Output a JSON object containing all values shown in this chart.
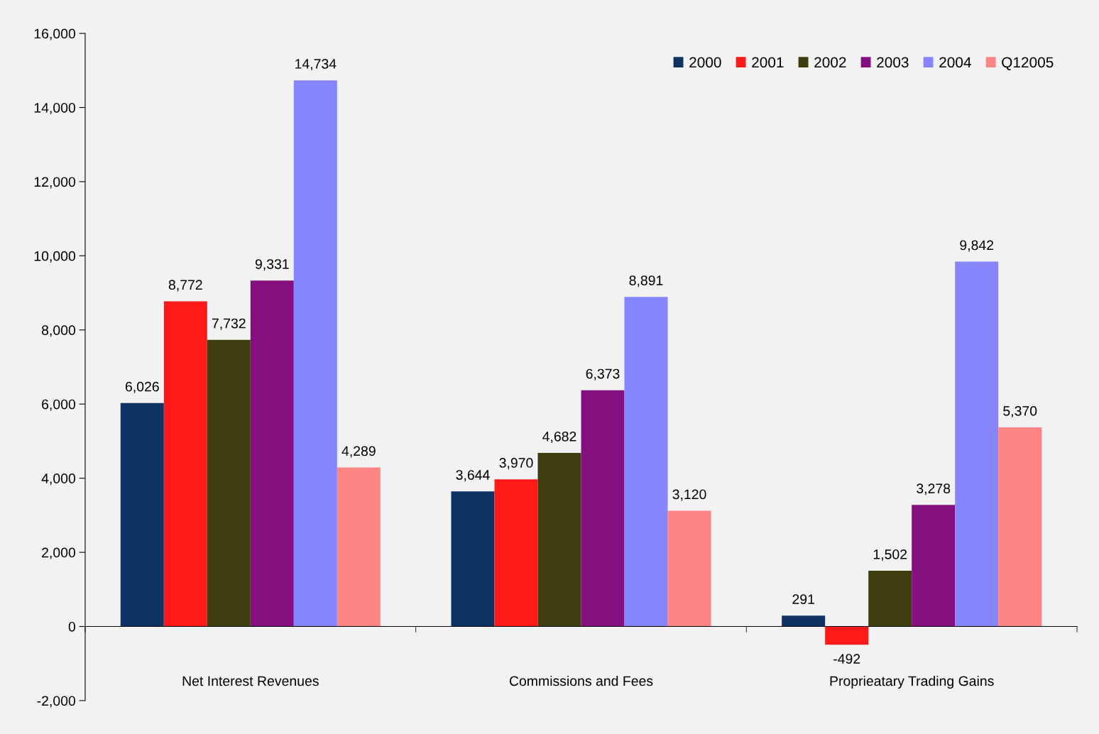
{
  "chart_data": {
    "type": "bar",
    "categories": [
      "Net Interest Revenues",
      "Commissions and Fees",
      "Proprieatary Trading Gains"
    ],
    "series": [
      {
        "name": "2000",
        "color": "#0d3263",
        "values": [
          6026,
          3644,
          291
        ],
        "value_labels": [
          "6,026",
          "3,644",
          "291"
        ]
      },
      {
        "name": "2001",
        "color": "#ff1a1a",
        "values": [
          8772,
          3970,
          -492
        ],
        "value_labels": [
          "8,772",
          "3,970",
          "-492"
        ]
      },
      {
        "name": "2002",
        "color": "#3d3d10",
        "values": [
          7732,
          4682,
          1502
        ],
        "value_labels": [
          "7,732",
          "4,682",
          "1,502"
        ]
      },
      {
        "name": "2003",
        "color": "#84107f",
        "values": [
          9331,
          6373,
          3278
        ],
        "value_labels": [
          "9,331",
          "6,373",
          "3,278"
        ]
      },
      {
        "name": "2004",
        "color": "#8585ff",
        "values": [
          14734,
          8891,
          9842
        ],
        "value_labels": [
          "14,734",
          "8,891",
          "9,842"
        ]
      },
      {
        "name": "Q12005",
        "color": "#ff8585",
        "values": [
          4289,
          3120,
          5370
        ],
        "value_labels": [
          "4,289",
          "3,120",
          "5,370"
        ]
      }
    ],
    "ylim": [
      -2000,
      16000
    ],
    "yticks": [
      {
        "value": -2000,
        "label": "-2,000"
      },
      0,
      {
        "value": 2000,
        "label": "2,000"
      },
      {
        "value": 4000,
        "label": "4,000"
      },
      {
        "value": 6000,
        "label": "6,000"
      },
      {
        "value": 8000,
        "label": "8,000"
      },
      {
        "value": 10000,
        "label": "10,000"
      },
      {
        "value": 12000,
        "label": "12,000"
      },
      {
        "value": 14000,
        "label": "14,000"
      },
      {
        "value": 16000,
        "label": "16,000"
      }
    ],
    "legend": "top right"
  }
}
